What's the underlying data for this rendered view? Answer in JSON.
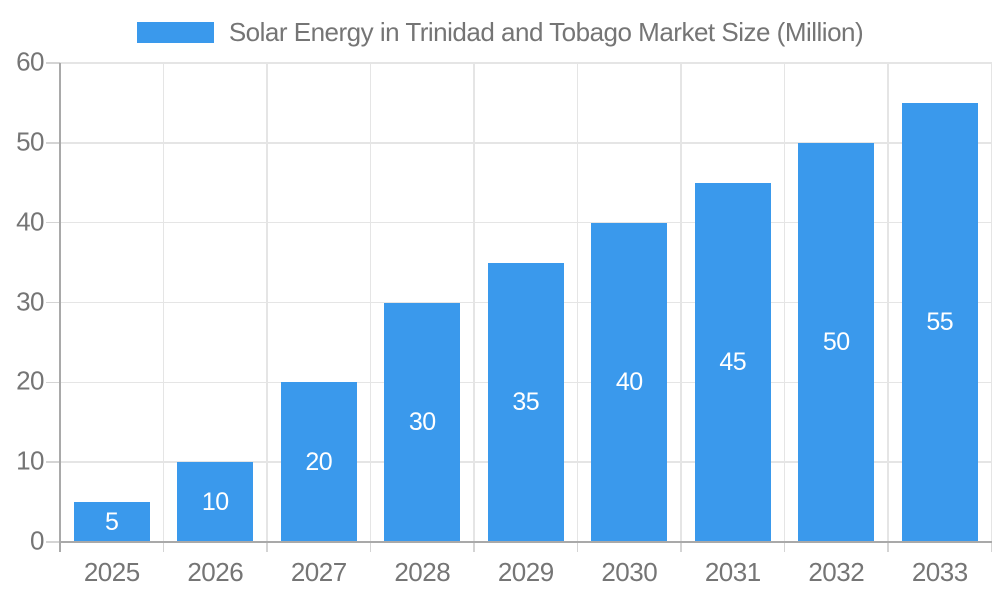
{
  "legend": {
    "label": "Solar Energy in Trinidad and Tobago Market Size (Million)"
  },
  "chart_data": {
    "type": "bar",
    "title": "Solar Energy in Trinidad and Tobago Market Size (Million)",
    "categories": [
      "2025",
      "2026",
      "2027",
      "2028",
      "2029",
      "2030",
      "2031",
      "2032",
      "2033"
    ],
    "values": [
      5,
      10,
      20,
      30,
      35,
      40,
      45,
      50,
      55
    ],
    "xlabel": "",
    "ylabel": "",
    "ylim": [
      0,
      60
    ],
    "y_ticks": [
      0,
      10,
      20,
      30,
      40,
      50,
      60
    ],
    "grid": true,
    "legend_position": "top",
    "bar_labels_visible": true,
    "colors": {
      "bar": "#3a99ec",
      "bar_label": "#ffffff",
      "grid_line": "#e5e5e5",
      "axis_line": "#a9a9a9",
      "tick_line": "#d4d4d4",
      "text": "#757575",
      "background": "#ffffff"
    }
  }
}
